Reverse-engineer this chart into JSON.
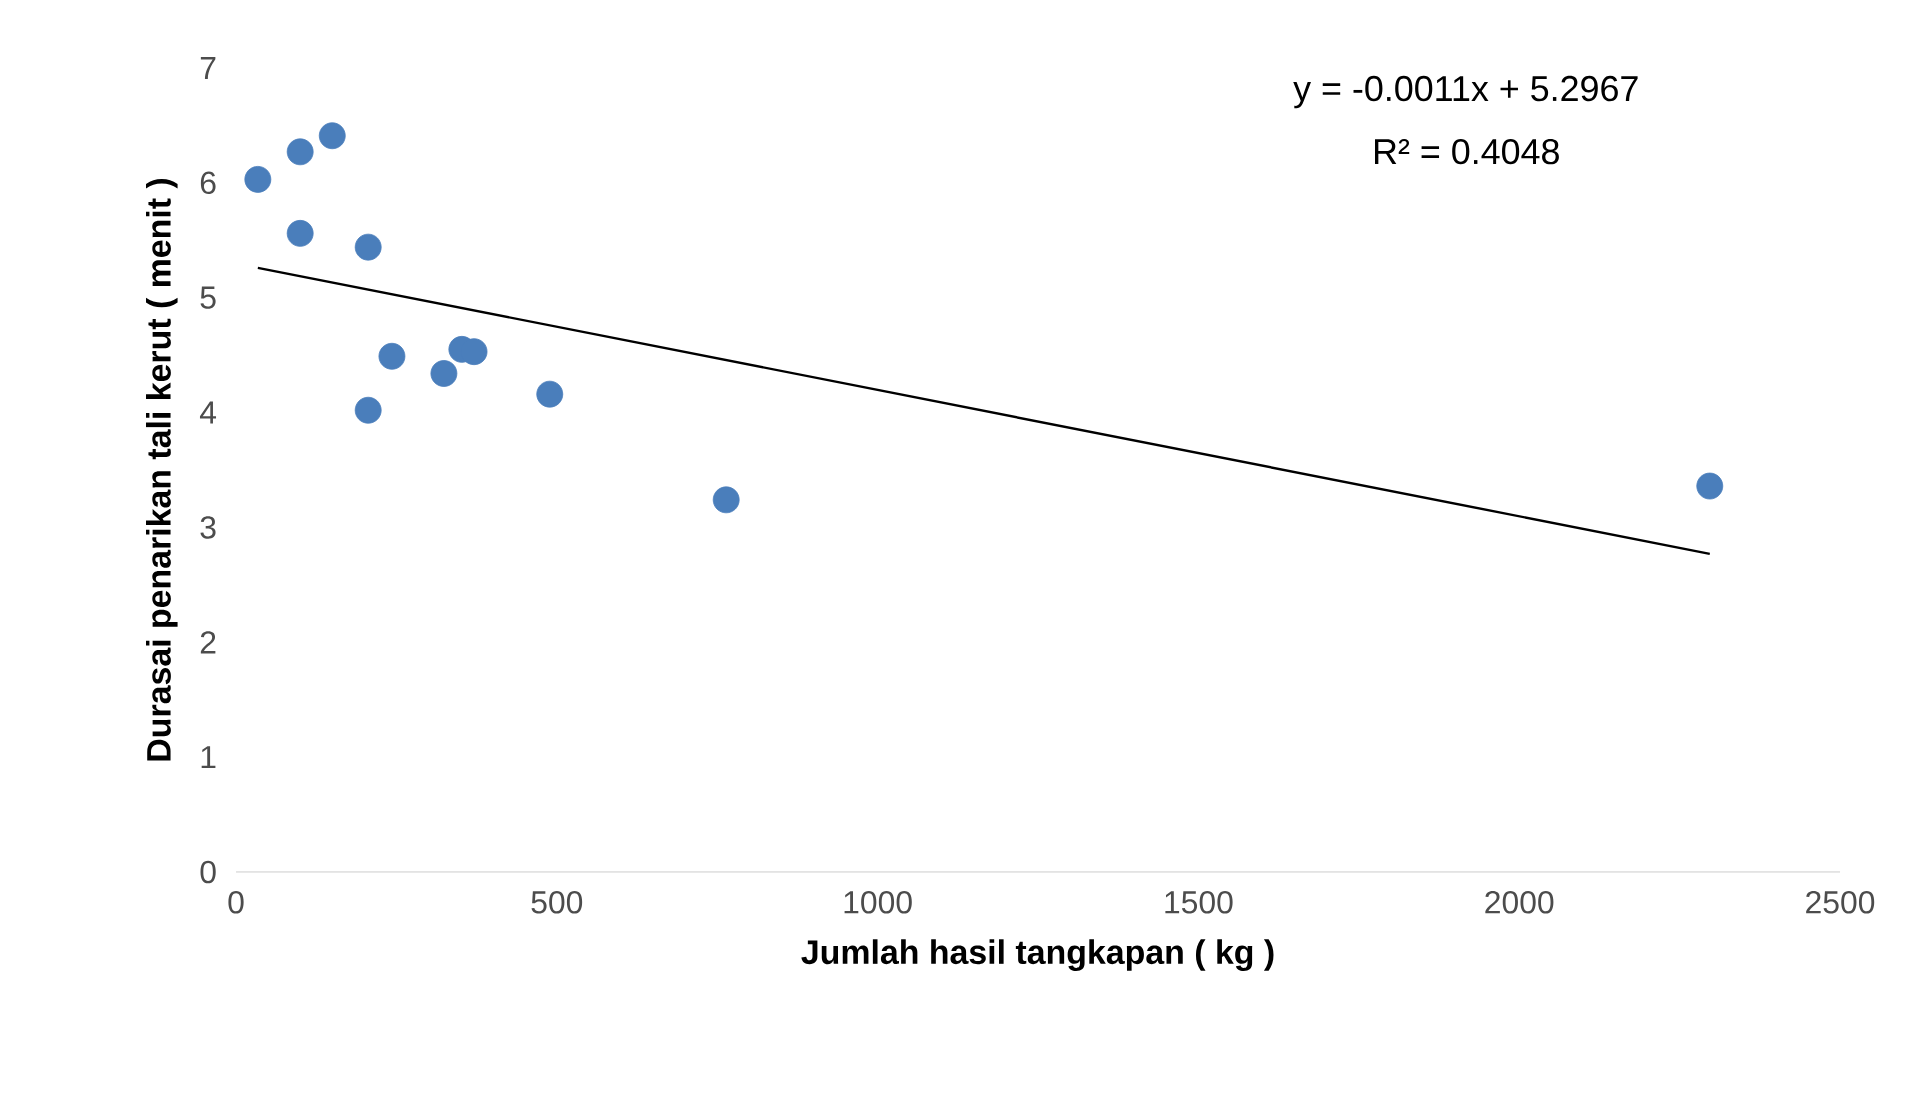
{
  "chart_data": {
    "type": "scatter",
    "xlabel": "Jumlah hasil tangkapan ( kg )",
    "ylabel": "Durasai penarikan tali kerut ( menit )",
    "annotations": [
      "y = -0.0011x + 5.2967",
      "R² = 0.4048"
    ],
    "xlim": [
      0,
      2500
    ],
    "ylim": [
      0,
      7
    ],
    "xticks": [
      0,
      500,
      1000,
      1500,
      2000,
      2500
    ],
    "yticks": [
      0,
      1,
      2,
      3,
      4,
      5,
      6,
      7
    ],
    "series": [
      {
        "marker": "circle",
        "color": "#4a7ebb",
        "x": [
          34,
          100,
          150,
          100,
          206,
          243,
          206,
          324,
          352,
          371,
          489,
          764,
          2297
        ],
        "values": [
          6.03,
          6.27,
          6.41,
          5.56,
          5.44,
          4.49,
          4.02,
          4.34,
          4.55,
          4.53,
          4.16,
          3.24,
          3.36
        ]
      },
      {
        "type": "line",
        "marker": "none",
        "color": "#000000",
        "x": [
          34,
          2297
        ],
        "values": [
          5.26,
          2.77
        ]
      }
    ]
  }
}
